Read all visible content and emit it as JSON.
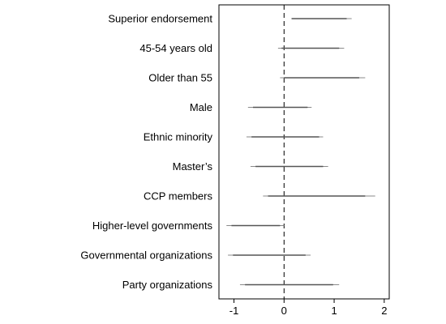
{
  "chart_data": {
    "type": "forest",
    "categories": [
      "Superior endorsement",
      "45-54 years old",
      "Older than 55",
      "Male",
      "Ethnic minority",
      "Master’s",
      "CCP members",
      "Higher-level governments",
      "Governmental organizations",
      "Party organizations"
    ],
    "series": [
      {
        "name": "",
        "intervals_outer": [
          [
            0.15,
            1.35
          ],
          [
            -0.12,
            1.2
          ],
          [
            -0.08,
            1.62
          ],
          [
            -0.72,
            0.55
          ],
          [
            -0.75,
            0.78
          ],
          [
            -0.67,
            0.88
          ],
          [
            -0.42,
            1.82
          ],
          [
            -1.15,
            0.0
          ],
          [
            -1.12,
            0.53
          ],
          [
            -0.88,
            1.1
          ]
        ],
        "intervals_inner": [
          [
            0.15,
            1.25
          ],
          [
            -0.05,
            1.1
          ],
          [
            0.0,
            1.5
          ],
          [
            -0.62,
            0.47
          ],
          [
            -0.65,
            0.7
          ],
          [
            -0.57,
            0.78
          ],
          [
            -0.32,
            1.62
          ],
          [
            -1.05,
            -0.08
          ],
          [
            -1.02,
            0.43
          ],
          [
            -0.78,
            0.98
          ]
        ]
      }
    ],
    "xticks": [
      -1,
      0,
      1,
      2
    ],
    "xtick_labels": [
      "-1",
      "0",
      "1",
      "2"
    ],
    "xlim": [
      -1.3,
      2.1
    ],
    "reference_line": 0,
    "reference_line_style": "dashed",
    "grid": false,
    "colors": {
      "interval": "#555555",
      "axis": "#000000",
      "reference": "#000000"
    }
  }
}
